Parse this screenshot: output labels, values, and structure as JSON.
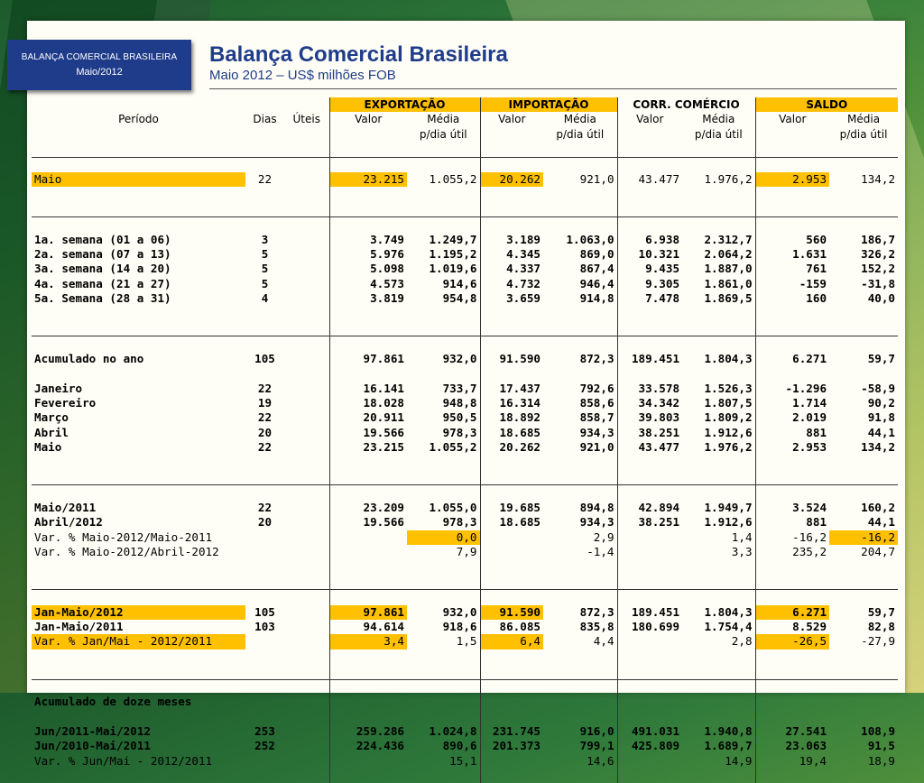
{
  "tag": {
    "line1": "BALANÇA COMERCIAL BRASILEIRA",
    "line2": "Maio/2012"
  },
  "title": {
    "main": "Balança Comercial Brasileira",
    "sub": "Maio 2012 – US$ milhões FOB"
  },
  "header": {
    "periodo": "Período",
    "dias": "Dias",
    "uteis": "Úteis",
    "exportacao": "EXPORTAÇÃO",
    "importacao": "IMPORTAÇÃO",
    "corr": "CORR. COMÉRCIO",
    "saldo": "SALDO",
    "valor": "Valor",
    "media1": "Média",
    "media2": "p/dia útil"
  },
  "colors": {
    "highlight": "#ffc000",
    "title": "#1f3c8a"
  },
  "blocks": [
    {
      "rows": [
        {
          "label": "Maio",
          "d": "22",
          "v": [
            "23.215",
            "1.055,2",
            "20.262",
            "921,0",
            "43.477",
            "1.976,2",
            "2.953",
            "134,2"
          ],
          "bold": false,
          "hl": [
            0,
            1,
            3,
            7
          ]
        }
      ]
    },
    {
      "rows": [
        {
          "label": "1a. semana (01 a 06)",
          "d": "3",
          "v": [
            "3.749",
            "1.249,7",
            "3.189",
            "1.063,0",
            "6.938",
            "2.312,7",
            "560",
            "186,7"
          ],
          "bold": true
        },
        {
          "label": "2a. semana (07 a 13)",
          "d": "5",
          "v": [
            "5.976",
            "1.195,2",
            "4.345",
            "869,0",
            "10.321",
            "2.064,2",
            "1.631",
            "326,2"
          ],
          "bold": true
        },
        {
          "label": "3a. semana (14 a 20)",
          "d": "5",
          "v": [
            "5.098",
            "1.019,6",
            "4.337",
            "867,4",
            "9.435",
            "1.887,0",
            "761",
            "152,2"
          ],
          "bold": true
        },
        {
          "label": "4a. semana (21 a 27)",
          "d": "5",
          "v": [
            "4.573",
            "914,6",
            "4.732",
            "946,4",
            "9.305",
            "1.861,0",
            "-159",
            "-31,8"
          ],
          "bold": true
        },
        {
          "label": "5a. Semana (28 a 31)",
          "d": "4",
          "v": [
            "3.819",
            "954,8",
            "3.659",
            "914,8",
            "7.478",
            "1.869,5",
            "160",
            "40,0"
          ],
          "bold": true
        }
      ]
    },
    {
      "rows": [
        {
          "label": "Acumulado no ano",
          "d": "105",
          "v": [
            "97.861",
            "932,0",
            "91.590",
            "872,3",
            "189.451",
            "1.804,3",
            "6.271",
            "59,7"
          ],
          "bold": true
        },
        {
          "spacer": true
        },
        {
          "label": "Janeiro",
          "d": "22",
          "v": [
            "16.141",
            "733,7",
            "17.437",
            "792,6",
            "33.578",
            "1.526,3",
            "-1.296",
            "-58,9"
          ],
          "bold": true
        },
        {
          "label": "Fevereiro",
          "d": "19",
          "v": [
            "18.028",
            "948,8",
            "16.314",
            "858,6",
            "34.342",
            "1.807,5",
            "1.714",
            "90,2"
          ],
          "bold": true
        },
        {
          "label": "Março",
          "d": "22",
          "v": [
            "20.911",
            "950,5",
            "18.892",
            "858,7",
            "39.803",
            "1.809,2",
            "2.019",
            "91,8"
          ],
          "bold": true
        },
        {
          "label": "Abril",
          "d": "20",
          "v": [
            "19.566",
            "978,3",
            "18.685",
            "934,3",
            "38.251",
            "1.912,6",
            "881",
            "44,1"
          ],
          "bold": true
        },
        {
          "label": "Maio",
          "d": "22",
          "v": [
            "23.215",
            "1.055,2",
            "20.262",
            "921,0",
            "43.477",
            "1.976,2",
            "2.953",
            "134,2"
          ],
          "bold": true
        }
      ]
    },
    {
      "rows": [
        {
          "label": "Maio/2011",
          "d": "22",
          "v": [
            "23.209",
            "1.055,0",
            "19.685",
            "894,8",
            "42.894",
            "1.949,7",
            "3.524",
            "160,2"
          ],
          "bold": true
        },
        {
          "label": "Abril/2012",
          "d": "20",
          "v": [
            "19.566",
            "978,3",
            "18.685",
            "934,3",
            "38.251",
            "1.912,6",
            "881",
            "44,1"
          ],
          "bold": true
        },
        {
          "label": "Var. % Maio-2012/Maio-2011",
          "d": "",
          "v": [
            "",
            "0,0",
            "",
            "2,9",
            "",
            "1,4",
            "-16,2",
            "-16,2"
          ],
          "bold": false,
          "hl": [
            2,
            8
          ]
        },
        {
          "label": "Var. % Maio-2012/Abril-2012",
          "d": "",
          "v": [
            "",
            "7,9",
            "",
            "-1,4",
            "",
            "3,3",
            "235,2",
            "204,7"
          ],
          "bold": false
        }
      ]
    },
    {
      "rows": [
        {
          "label": "Jan-Maio/2012",
          "d": "105",
          "v": [
            "97.861",
            "932,0",
            "91.590",
            "872,3",
            "189.451",
            "1.804,3",
            "6.271",
            "59,7"
          ],
          "bold": true,
          "hl": [
            0,
            1,
            3,
            7
          ]
        },
        {
          "label": "Jan-Maio/2011",
          "d": "103",
          "v": [
            "94.614",
            "918,6",
            "86.085",
            "835,8",
            "180.699",
            "1.754,4",
            "8.529",
            "82,8"
          ],
          "bold": true
        },
        {
          "label": "Var. % Jan/Mai - 2012/2011",
          "d": "",
          "v": [
            "3,4",
            "1,5",
            "6,4",
            "4,4",
            "",
            "2,8",
            "-26,5",
            "-27,9"
          ],
          "bold": false,
          "hl": [
            0,
            1,
            3,
            7
          ]
        }
      ]
    },
    {
      "rows": [
        {
          "label": "Acumulado de doze meses",
          "d": "",
          "v": [
            "",
            "",
            "",
            "",
            "",
            "",
            "",
            ""
          ],
          "bold": true
        },
        {
          "spacer": true
        },
        {
          "label": "Jun/2011-Mai/2012",
          "d": "253",
          "v": [
            "259.286",
            "1.024,8",
            "231.745",
            "916,0",
            "491.031",
            "1.940,8",
            "27.541",
            "108,9"
          ],
          "bold": true
        },
        {
          "label": "Jun/2010-Mai/2011",
          "d": "252",
          "v": [
            "224.436",
            "890,6",
            "201.373",
            "799,1",
            "425.809",
            "1.689,7",
            "23.063",
            "91,5"
          ],
          "bold": true
        },
        {
          "label": "Var. % Jun/Mai - 2012/2011",
          "d": "",
          "v": [
            "",
            "15,1",
            "",
            "14,6",
            "",
            "14,9",
            "19,4",
            "18,9"
          ],
          "bold": false
        }
      ]
    }
  ]
}
